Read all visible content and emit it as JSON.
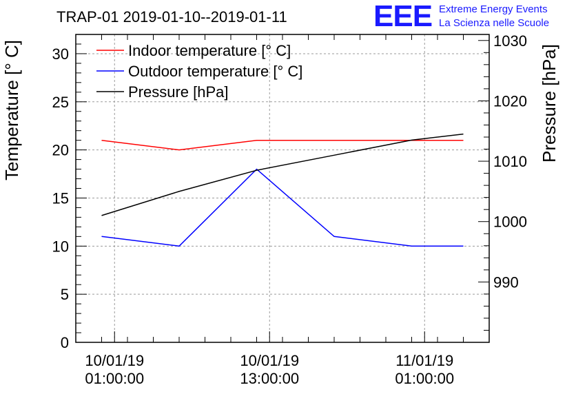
{
  "chart_data": {
    "type": "line",
    "title": "TRAP-01 2019-01-10--2019-01-11",
    "ylabel": "Temperature [° C]",
    "y2label": "Pressure [hPa]",
    "xlabel": "",
    "x": [
      "10/01/19 00:00",
      "10/01/19 06:00",
      "10/01/19 12:00",
      "10/01/19 18:00",
      "11/01/19 00:00",
      "11/01/19 04:00"
    ],
    "ylim": [
      0,
      32
    ],
    "y2lim": [
      980,
      1031
    ],
    "yticks": [
      0,
      5,
      10,
      15,
      20,
      25,
      30
    ],
    "y2ticks": [
      990,
      1000,
      1010,
      1020,
      1030
    ],
    "xticks": [
      {
        "x": "10/01/19 01:00",
        "date": "10/01/19",
        "time": "01:00:00"
      },
      {
        "x": "10/01/19 13:00",
        "date": "10/01/19",
        "time": "13:00:00"
      },
      {
        "x": "11/01/19 01:00",
        "date": "11/01/19",
        "time": "01:00:00"
      }
    ],
    "grid": true,
    "legend_position": "top-left",
    "series": [
      {
        "name": "Indoor temperature [° C]",
        "color": "#ff0000",
        "axis": "left",
        "values": [
          21,
          20,
          21,
          21,
          21,
          21
        ]
      },
      {
        "name": "Outdoor temperature [° C]",
        "color": "#0000ff",
        "axis": "left",
        "values": [
          11,
          10,
          18,
          11,
          10,
          10
        ]
      },
      {
        "name": "Pressure [hPa]",
        "color": "#000000",
        "axis": "right",
        "values": [
          1001,
          1005,
          1008.5,
          1011,
          1013.5,
          1014.5
        ]
      }
    ]
  },
  "logo": {
    "mark": "EEE",
    "line1": "Extreme Energy Events",
    "line2": "La Scienza nelle Scuole"
  }
}
